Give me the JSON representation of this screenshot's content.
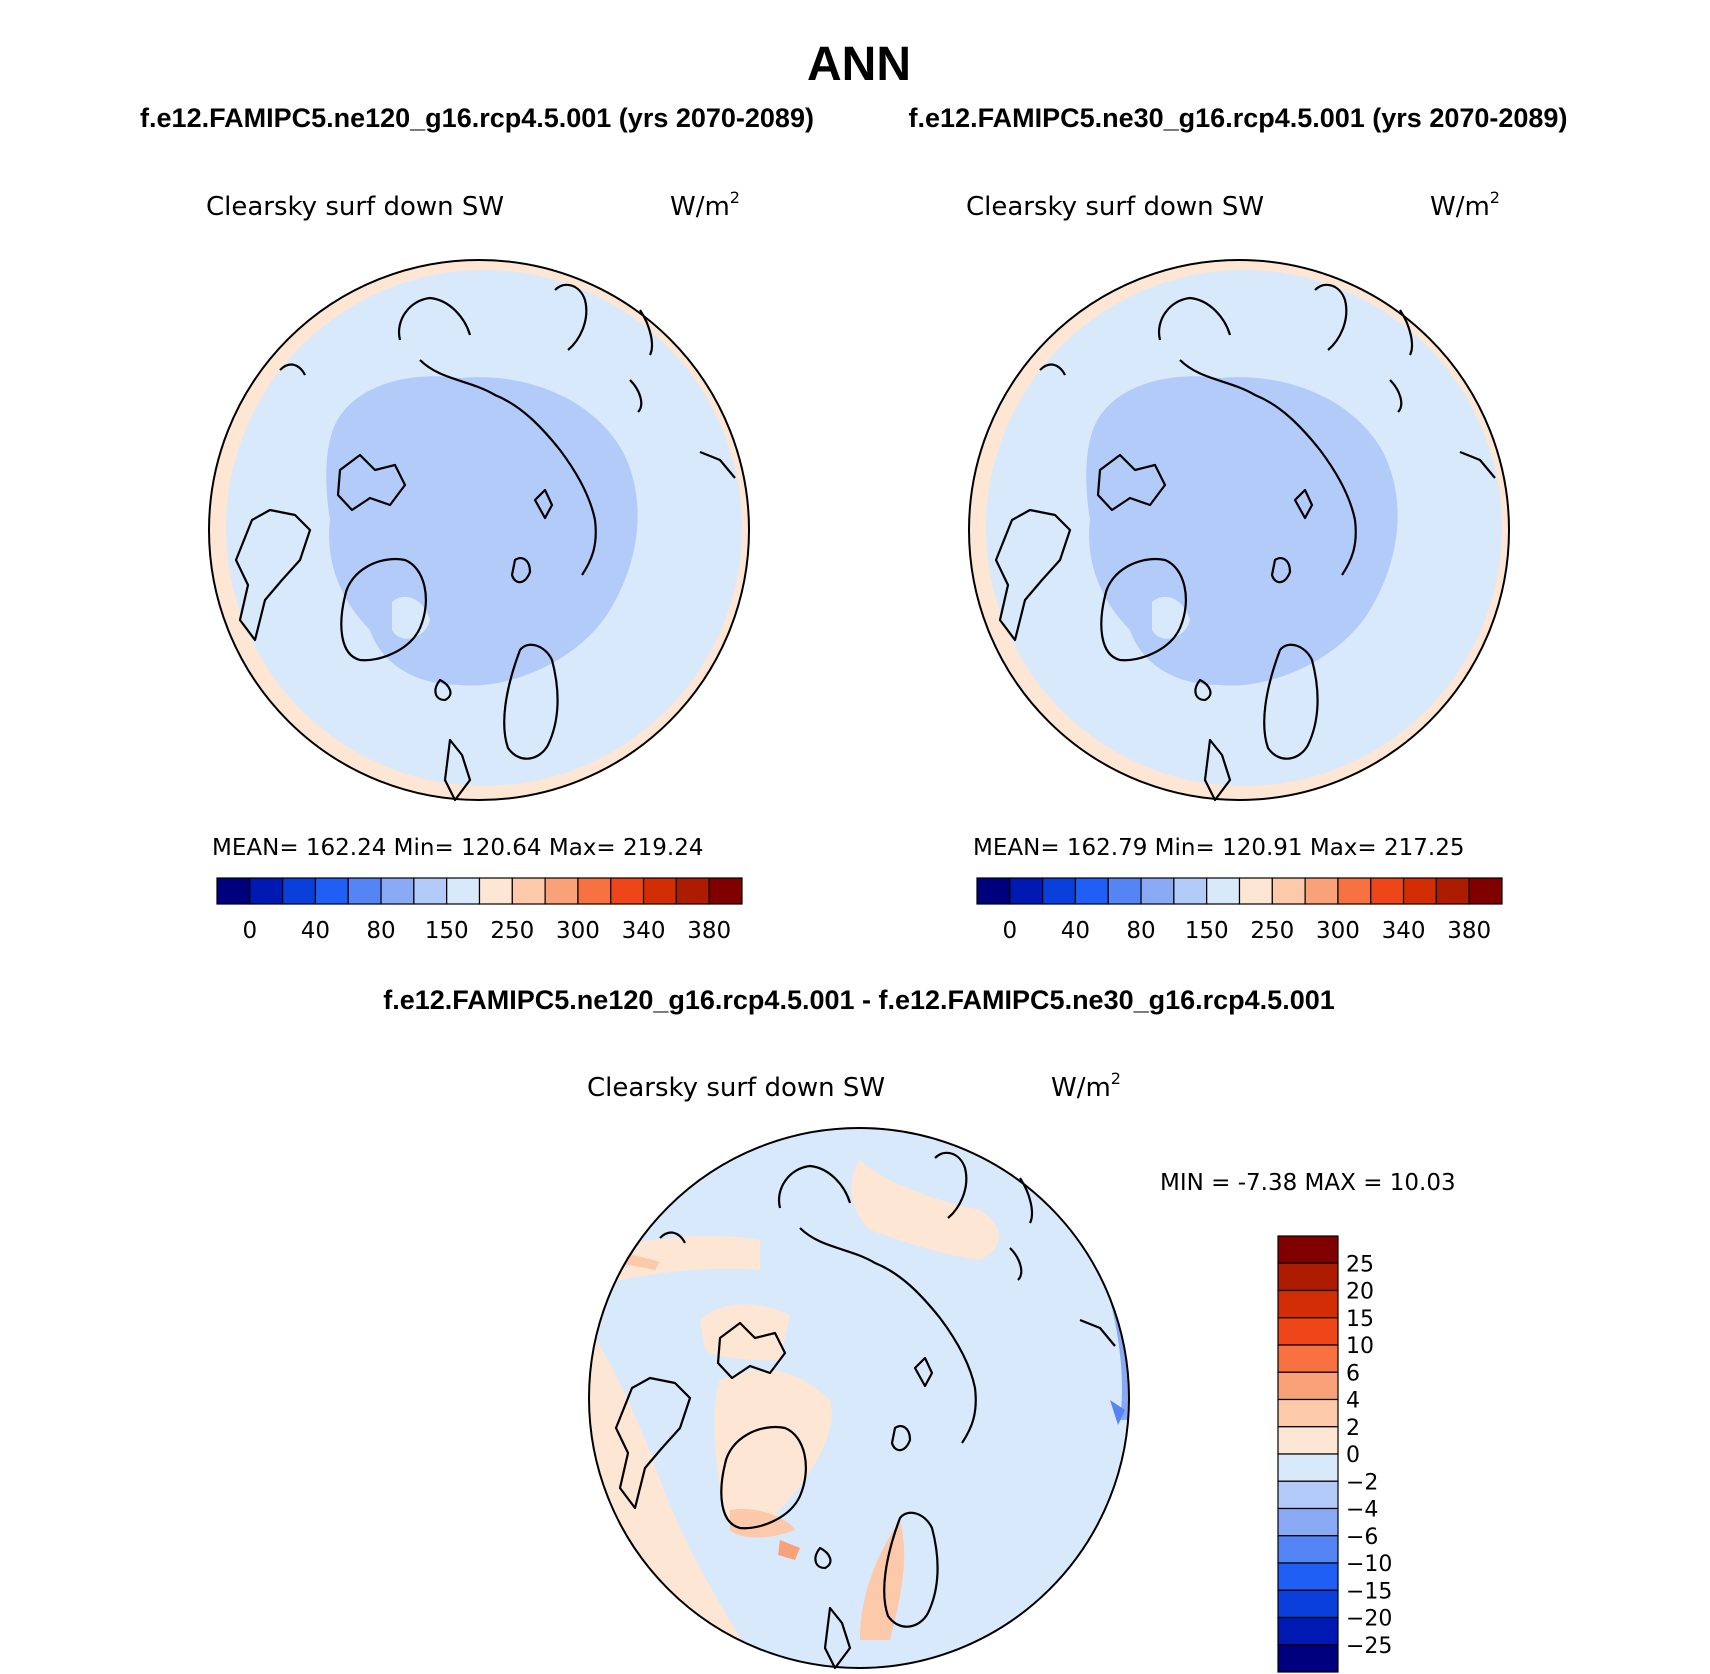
{
  "title": "ANN",
  "panels": [
    {
      "case_label": "f.e12.FAMIPC5.ne120_g16.rcp4.5.001 (yrs 2070-2089)",
      "variable": "Clearsky surf down SW",
      "units": "W/m",
      "units_sup": "2",
      "stats": "MEAN= 162.24 Min= 120.64 Max= 219.24"
    },
    {
      "case_label": "f.e12.FAMIPC5.ne30_g16.rcp4.5.001 (yrs 2070-2089)",
      "variable": "Clearsky surf down SW",
      "units": "W/m",
      "units_sup": "2",
      "stats": "MEAN= 162.79 Min= 120.91 Max= 217.25"
    }
  ],
  "abs_colorbar": {
    "colors": [
      "#00007f",
      "#0019b2",
      "#0a3fdc",
      "#1f5ff5",
      "#5585f5",
      "#8aa9f5",
      "#b3cbf9",
      "#d8e9fc",
      "#fde6d3",
      "#fcc9ab",
      "#f9a279",
      "#f77240",
      "#ee4618",
      "#d22d04",
      "#ad1b00",
      "#800000"
    ],
    "labels": [
      "0",
      "40",
      "80",
      "150",
      "250",
      "300",
      "340",
      "380"
    ]
  },
  "diff_panel": {
    "title": "f.e12.FAMIPC5.ne120_g16.rcp4.5.001 - f.e12.FAMIPC5.ne30_g16.rcp4.5.001",
    "variable": "Clearsky surf down SW",
    "units": "W/m",
    "units_sup": "2",
    "stats": "MIN = -7.38 MAX = 10.03"
  },
  "diff_colorbar": {
    "colors": [
      "#800000",
      "#ad1b00",
      "#d22d04",
      "#ee4618",
      "#f77240",
      "#f9a279",
      "#fcc9ab",
      "#fde6d3",
      "#d8e9fc",
      "#b3cbf9",
      "#8aa9f5",
      "#5585f5",
      "#1f5ff5",
      "#0a3fdc",
      "#0019b2",
      "#00007f"
    ],
    "labels": [
      "25",
      "20",
      "15",
      "10",
      "6",
      "4",
      "2",
      "0",
      "−2",
      "−4",
      "−6",
      "−10",
      "−15",
      "−20",
      "−25"
    ]
  },
  "map_colors": {
    "background_light_blue": "#d8e9fc",
    "inner_blue": "#b3cbf9",
    "peach": "#fde6d3",
    "salmon": "#fcc9ab",
    "orange": "#f9a279",
    "mid_blue": "#8aa9f5"
  }
}
